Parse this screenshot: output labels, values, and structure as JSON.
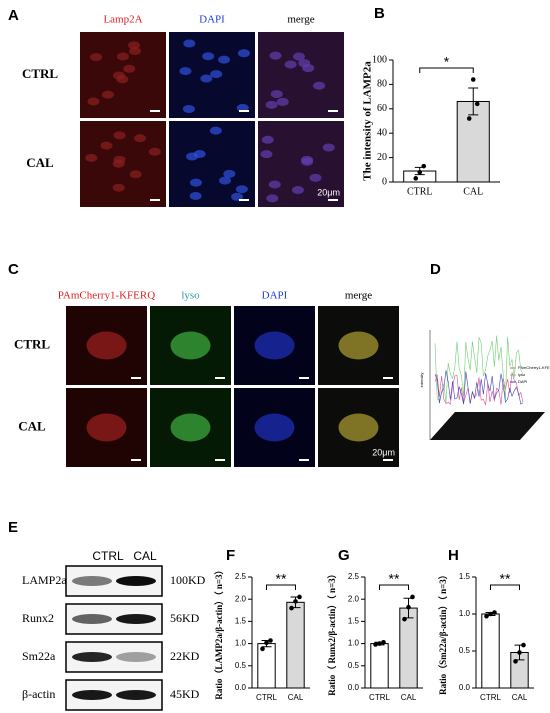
{
  "panel_labels": [
    "A",
    "B",
    "C",
    "D",
    "E",
    "F",
    "G",
    "H"
  ],
  "panel_a": {
    "columns": [
      "Lamp2A",
      "DAPI",
      "merge"
    ],
    "label_colors": [
      "#e02020",
      "#2040e0",
      "#000000"
    ],
    "image_colors": [
      "#3a0808",
      "#06082e",
      "#281030"
    ],
    "rows": [
      "CTRL",
      "CAL"
    ],
    "scale_bar": "20μm"
  },
  "panel_c": {
    "columns": [
      "PAmCherry1-KFERQ",
      "lyso",
      "DAPI",
      "merge"
    ],
    "label_colors": [
      "#e02020",
      "#20a0a0",
      "#2040e0",
      "#000000"
    ],
    "image_colors": [
      "#200404",
      "#041a04",
      "#02021a",
      "#0c0c0a"
    ],
    "rows": [
      "CTRL",
      "CAL"
    ],
    "scale_bar": "20μm"
  },
  "panel_d": {
    "y_label": "intensity",
    "legend": [
      "PAmCherry1-KFERQ",
      "lyso",
      "DAPI"
    ],
    "legend_colors": [
      "#e05090",
      "#70d070",
      "#4040c0"
    ]
  },
  "panel_e": {
    "columns": [
      "CTRL",
      "CAL"
    ],
    "bands": [
      {
        "protein": "LAMP2a",
        "size": "100KD"
      },
      {
        "protein": "Runx2",
        "size": "56KD"
      },
      {
        "protein": "Sm22a",
        "size": "22KD"
      },
      {
        "protein": "β-actin",
        "size": "45KD"
      }
    ]
  },
  "chart_data": [
    {
      "type": "bar",
      "y_label": "The intensity of LAMP2a",
      "categories": [
        "CTRL",
        "CAL"
      ],
      "values": [
        9,
        66
      ],
      "errors": [
        3,
        11
      ],
      "points": [
        [
          3,
          8,
          13
        ],
        [
          52,
          84,
          64
        ]
      ],
      "colors": [
        "#ffffff",
        "#d9d9d9"
      ],
      "ylim": [
        0,
        100
      ],
      "yticks": [
        0,
        20,
        40,
        60,
        80,
        100
      ],
      "significance": "*"
    },
    {
      "type": "bar",
      "y_label": "Ratio（LAMP2a/β-actin）（ n=3）",
      "categories": [
        "CTRL",
        "CAL"
      ],
      "values": [
        1.0,
        1.93
      ],
      "errors": [
        0.07,
        0.12
      ],
      "points": [
        [
          0.88,
          1.02,
          1.07
        ],
        [
          1.8,
          1.95,
          2.05
        ]
      ],
      "colors": [
        "#ffffff",
        "#d9d9d9"
      ],
      "ylim": [
        0,
        2.5
      ],
      "yticks": [
        {
          "value": 0,
          "label": "0.0"
        },
        0.5,
        {
          "value": 1,
          "label": "1.0"
        },
        1.5,
        {
          "value": 2,
          "label": "2.0"
        },
        2.5
      ],
      "significance": "**"
    },
    {
      "type": "bar",
      "y_label": "Ratio（ Runx2/β-actin）（ n=3）",
      "categories": [
        "CTRL",
        "CAL"
      ],
      "values": [
        1.0,
        1.8
      ],
      "errors": [
        0.03,
        0.22
      ],
      "points": [
        [
          0.98,
          1.0,
          1.03
        ],
        [
          1.55,
          1.82,
          2.05
        ]
      ],
      "colors": [
        "#ffffff",
        "#d9d9d9"
      ],
      "ylim": [
        0,
        2.5
      ],
      "yticks": [
        {
          "value": 0,
          "label": "0.0"
        },
        0.5,
        {
          "value": 1,
          "label": "1.0"
        },
        1.5,
        {
          "value": 2,
          "label": "2.0"
        },
        2.5
      ],
      "significance": "**"
    },
    {
      "type": "bar",
      "y_label": "Ratio（Sm22a/β-actin）（ n=3）",
      "categories": [
        "CTRL",
        "CAL"
      ],
      "values": [
        1.0,
        0.48
      ],
      "errors": [
        0.02,
        0.1
      ],
      "points": [
        [
          0.97,
          1.0,
          1.02
        ],
        [
          0.36,
          0.48,
          0.58
        ]
      ],
      "colors": [
        "#ffffff",
        "#d9d9d9"
      ],
      "ylim": [
        0,
        1.5
      ],
      "yticks": [
        {
          "value": 0,
          "label": "0.0"
        },
        0.5,
        {
          "value": 1,
          "label": "1.0"
        },
        1.5
      ],
      "significance": "**"
    }
  ]
}
